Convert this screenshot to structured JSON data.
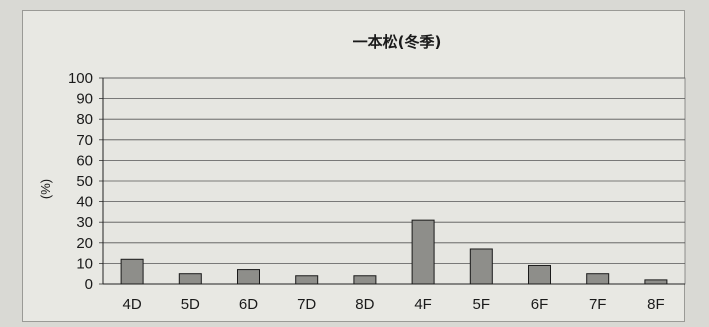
{
  "chart_data": {
    "type": "bar",
    "title": "一本松(冬季)",
    "xlabel": "",
    "ylabel": "(%)",
    "ylim": [
      0,
      100
    ],
    "yticks": [
      0,
      10,
      20,
      30,
      40,
      50,
      60,
      70,
      80,
      90,
      100
    ],
    "grid": true,
    "categories": [
      "4D",
      "5D",
      "6D",
      "7D",
      "8D",
      "4F",
      "5F",
      "6F",
      "7F",
      "8F"
    ],
    "values": [
      12,
      5,
      7,
      4,
      4,
      31,
      17,
      9,
      5,
      2
    ],
    "colors": {
      "bar_fill": "#8e8e8a",
      "bar_stroke": "#1a1a1a",
      "grid": "#555555",
      "plot_bg": "#e6e6e1"
    }
  }
}
